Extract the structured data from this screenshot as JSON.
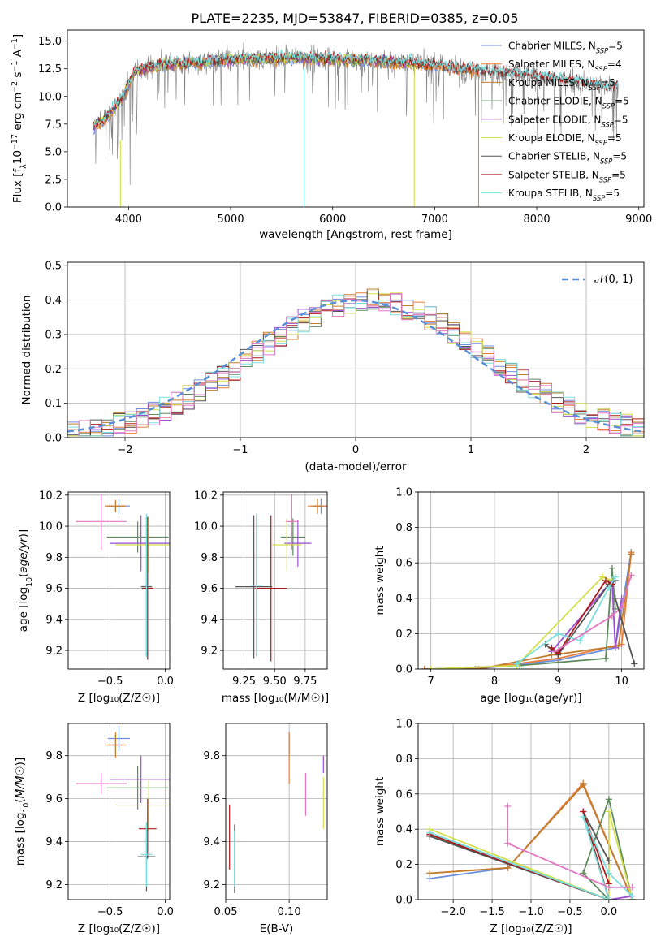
{
  "figure": {
    "title": "PLATE=2235, MJD=53847, FIBERID=0385, z=0.05"
  },
  "colors": {
    "Chabrier MILES": "#6d8fe0",
    "Salpeter MILES": "#e87e38",
    "Kroupa MILES": "#c27d2e",
    "Chabrier ELODIE": "#5e8a5e",
    "Salpeter ELODIE": "#9a4fd0",
    "Kroupa ELODIE": "#d4e04a",
    "Chabrier STELIB": "#555555",
    "Salpeter STELIB": "#b01818",
    "Kroupa STELIB": "#7adede",
    "pink": "#e377c2",
    "normal": "#5a8ed6",
    "grid": "#b0b0b0"
  },
  "chart_data": [
    {
      "type": "line",
      "panel": "spectrum",
      "xlabel": "wavelength [Angstrom, rest frame]",
      "ylabel": "Flux [f_λ 10^-17 erg cm^-2 s^-1 A^-1]",
      "xlim": [
        3400,
        9050
      ],
      "ylim": [
        0,
        16
      ],
      "xticks": [
        4000,
        5000,
        6000,
        7000,
        8000,
        9000
      ],
      "yticks": [
        0.0,
        2.5,
        5.0,
        7.5,
        10.0,
        12.5,
        15.0
      ],
      "ytick_labels": [
        "0.0",
        "2.5",
        "5.0",
        "7.5",
        "10.0",
        "12.5",
        "15.0"
      ],
      "legend_position": "upper right",
      "series": [
        {
          "name": "Chabrier MILES",
          "nssp": "5",
          "end": 7430
        },
        {
          "name": "Salpeter MILES",
          "nssp": "4",
          "end": 7430
        },
        {
          "name": "Kroupa MILES",
          "nssp": "5",
          "end": 7430
        },
        {
          "name": "Chabrier ELODIE",
          "nssp": "5",
          "end": 6800
        },
        {
          "name": "Salpeter ELODIE",
          "nssp": "5",
          "end": 6800
        },
        {
          "name": "Kroupa ELODIE",
          "nssp": "5",
          "end": 6800
        },
        {
          "name": "Chabrier STELIB",
          "nssp": "5",
          "end": 8800
        },
        {
          "name": "Salpeter STELIB",
          "nssp": "5",
          "end": 8800
        },
        {
          "name": "Kroupa STELIB",
          "nssp": "5",
          "end": 8800
        }
      ],
      "continuum": {
        "x": [
          3650,
          3750,
          3850,
          3950,
          4050,
          4200,
          4400,
          4700,
          5000,
          5300,
          5600,
          5900,
          6200,
          6500,
          6800,
          7100,
          7400,
          7700,
          8000,
          8300,
          8600,
          8800
        ],
        "y": [
          7.2,
          7.8,
          8.8,
          10.0,
          12.2,
          12.6,
          12.9,
          13.1,
          13.3,
          13.4,
          13.5,
          13.4,
          13.3,
          13.2,
          13.0,
          12.7,
          12.4,
          12.1,
          11.8,
          11.4,
          11.0,
          10.8
        ]
      }
    },
    {
      "type": "histogram",
      "panel": "residuals",
      "xlabel": "(data-model)/error",
      "ylabel": "Normed distribution",
      "xlim": [
        -2.5,
        2.5
      ],
      "ylim": [
        0,
        0.51
      ],
      "xticks": [
        -2,
        -1,
        0,
        1,
        2
      ],
      "xtick_labels": [
        "−2",
        "−1",
        "0",
        "1",
        "2"
      ],
      "yticks": [
        0.0,
        0.1,
        0.2,
        0.3,
        0.4,
        0.5
      ],
      "ytick_labels": [
        "0.0",
        "0.1",
        "0.2",
        "0.3",
        "0.4",
        "0.5"
      ],
      "bin_width": 0.1,
      "legend": "𝒩(0, 1)",
      "legend_position": "upper right",
      "normal": {
        "mean": 0,
        "sigma": 1
      }
    },
    {
      "type": "scatter",
      "panel": "age-vs-Z",
      "xlabel": "Z [log₁₀(Z/Z☉)]",
      "ylabel": "age  [log₁₀(age/yr)]",
      "xlim": [
        -0.88,
        0.04
      ],
      "ylim": [
        9.08,
        10.22
      ],
      "xticks": [
        -0.5,
        0.0
      ],
      "xtick_labels": [
        "−0.5",
        "0.0"
      ],
      "yticks": [
        9.2,
        9.4,
        9.6,
        9.8,
        10.0,
        10.2
      ],
      "ytick_labels": [
        "9.2",
        "9.4",
        "9.6",
        "9.8",
        "10.0",
        "10.2"
      ],
      "points": [
        {
          "name": "Chabrier MILES",
          "x": -0.42,
          "y": 10.13,
          "xerr": 0.1,
          "yerr": 0.05
        },
        {
          "name": "Salpeter MILES",
          "x": -0.45,
          "y": 10.13,
          "xerr": 0.1,
          "yerr": 0.04
        },
        {
          "name": "Kroupa MILES",
          "x": -0.45,
          "y": 10.13,
          "xerr": 0.08,
          "yerr": 0.03
        },
        {
          "name": "Chabrier ELODIE",
          "x": -0.25,
          "y": 9.93,
          "xerr": 0.28,
          "yerr": 0.1
        },
        {
          "name": "Salpeter ELODIE",
          "x": -0.22,
          "y": 9.89,
          "xerr": 0.28,
          "yerr": 0.18
        },
        {
          "name": "Kroupa ELODIE",
          "x": -0.15,
          "y": 9.88,
          "xerr": 0.3,
          "yerr": 0.18
        },
        {
          "name": "Chabrier STELIB",
          "x": -0.17,
          "y": 9.61,
          "xerr": 0.05,
          "yerr": 0.45
        },
        {
          "name": "Salpeter STELIB",
          "x": -0.16,
          "y": 9.6,
          "xerr": 0.05,
          "yerr": 0.46
        },
        {
          "name": "Kroupa STELIB",
          "x": -0.17,
          "y": 9.62,
          "xerr": 0.04,
          "yerr": 0.46
        },
        {
          "name": "pink",
          "x": -0.58,
          "y": 10.03,
          "xerr": 0.23,
          "yerr": 0.18
        }
      ]
    },
    {
      "type": "scatter",
      "panel": "age-vs-mass",
      "xlabel": "mass [log₁₀(M/M☉)]",
      "ylabel": "",
      "xlim": [
        9.08,
        9.93
      ],
      "ylim": [
        9.08,
        10.22
      ],
      "xticks": [
        9.25,
        9.5,
        9.75
      ],
      "xtick_labels": [
        "9.25",
        "9.50",
        "9.75"
      ],
      "yticks": [
        9.2,
        9.4,
        9.6,
        9.8,
        10.0,
        10.2
      ],
      "ytick_labels": [
        "9.2",
        "9.4",
        "9.6",
        "9.8",
        "10.0",
        "10.2"
      ],
      "points": [
        {
          "name": "Chabrier MILES",
          "x": 9.88,
          "y": 10.13,
          "xerr": 0.06,
          "yerr": 0.05
        },
        {
          "name": "Salpeter MILES",
          "x": 9.85,
          "y": 10.13,
          "xerr": 0.08,
          "yerr": 0.04
        },
        {
          "name": "Kroupa MILES",
          "x": 9.85,
          "y": 10.13,
          "xerr": 0.05,
          "yerr": 0.05
        },
        {
          "name": "Chabrier ELODIE",
          "x": 9.65,
          "y": 9.93,
          "xerr": 0.1,
          "yerr": 0.12
        },
        {
          "name": "Salpeter ELODIE",
          "x": 9.69,
          "y": 9.89,
          "xerr": 0.11,
          "yerr": 0.15
        },
        {
          "name": "Kroupa ELODIE",
          "x": 9.6,
          "y": 9.88,
          "xerr": 0.12,
          "yerr": 0.17
        },
        {
          "name": "Chabrier STELIB",
          "x": 9.33,
          "y": 9.61,
          "xerr": 0.15,
          "yerr": 0.46
        },
        {
          "name": "Salpeter STELIB",
          "x": 9.47,
          "y": 9.6,
          "xerr": 0.13,
          "yerr": 0.47
        },
        {
          "name": "Kroupa STELIB",
          "x": 9.35,
          "y": 9.62,
          "xerr": 0.05,
          "yerr": 0.46
        },
        {
          "name": "pink",
          "x": 9.64,
          "y": 10.03,
          "xerr": 0.05,
          "yerr": 0.18
        }
      ]
    },
    {
      "type": "line",
      "panel": "massweight-vs-age",
      "xlabel": "age  [log₁₀(age/yr)]",
      "ylabel": "mass weight",
      "xlim": [
        6.8,
        10.35
      ],
      "ylim": [
        0,
        1.0
      ],
      "xticks": [
        7,
        8,
        9,
        10
      ],
      "xtick_labels": [
        "7",
        "8",
        "9",
        "10"
      ],
      "yticks": [
        0.0,
        0.2,
        0.4,
        0.6,
        0.8,
        1.0
      ],
      "ytick_labels": [
        "0.0",
        "0.2",
        "0.4",
        "0.6",
        "0.8",
        "1.0"
      ],
      "series": [
        {
          "name": "Chabrier MILES",
          "x": [
            6.9,
            7.7,
            9.0,
            9.9,
            10.15
          ],
          "y": [
            0.0,
            0.0,
            0.05,
            0.12,
            0.66
          ]
        },
        {
          "name": "Salpeter MILES",
          "x": [
            6.9,
            7.7,
            9.0,
            10.0,
            10.15
          ],
          "y": [
            0.0,
            0.0,
            0.06,
            0.14,
            0.66
          ]
        },
        {
          "name": "Kroupa MILES",
          "x": [
            6.9,
            7.75,
            8.9,
            9.95,
            10.15
          ],
          "y": [
            0.0,
            0.0,
            0.08,
            0.13,
            0.65
          ]
        },
        {
          "name": "Chabrier ELODIE",
          "x": [
            7.0,
            8.4,
            9.75,
            9.85,
            9.9
          ],
          "y": [
            0.0,
            0.02,
            0.06,
            0.57,
            0.34
          ]
        },
        {
          "name": "Salpeter ELODIE",
          "x": [
            8.9,
            9.85,
            9.9,
            10.0
          ],
          "y": [
            0.1,
            0.5,
            0.12,
            0.4
          ]
        },
        {
          "name": "Kroupa ELODIE",
          "x": [
            7.0,
            8.35,
            9.7,
            9.85
          ],
          "y": [
            0.0,
            0.02,
            0.52,
            0.5
          ]
        },
        {
          "name": "Chabrier STELIB",
          "x": [
            8.8,
            9.0,
            9.8,
            9.9
          ],
          "y": [
            0.14,
            0.08,
            0.48,
            0.5
          ]
        },
        {
          "name": "Salpeter STELIB",
          "x": [
            8.9,
            9.0,
            9.75,
            9.85
          ],
          "y": [
            0.12,
            0.09,
            0.5,
            0.48
          ]
        },
        {
          "name": "Kroupa STELIB",
          "x": [
            8.35,
            9.0,
            9.35,
            9.8,
            9.9
          ],
          "y": [
            0.03,
            0.2,
            0.16,
            0.46,
            0.52
          ]
        },
        {
          "name": "pink",
          "x": [
            8.95,
            9.85,
            10.0,
            10.15
          ],
          "y": [
            0.1,
            0.3,
            0.35,
            0.53
          ]
        },
        {
          "name": "Chabrier STELIB",
          "x": [
            9.9,
            10.2
          ],
          "y": [
            0.4,
            0.03
          ]
        }
      ]
    },
    {
      "type": "scatter",
      "panel": "mass-vs-Z",
      "xlabel": "Z [log₁₀(Z/Z☉)]",
      "ylabel": "mass [log₁₀(M/M☉)]",
      "xlim": [
        -0.88,
        0.04
      ],
      "ylim": [
        9.13,
        9.95
      ],
      "xticks": [
        -0.5,
        0.0
      ],
      "xtick_labels": [
        "−0.5",
        "0.0"
      ],
      "yticks": [
        9.2,
        9.4,
        9.6,
        9.8
      ],
      "ytick_labels": [
        "9.2",
        "9.4",
        "9.6",
        "9.8"
      ],
      "points": [
        {
          "name": "Chabrier MILES",
          "x": -0.42,
          "y": 9.88,
          "xerr": 0.1,
          "yerr": 0.06
        },
        {
          "name": "Salpeter MILES",
          "x": -0.45,
          "y": 9.85,
          "xerr": 0.1,
          "yerr": 0.06
        },
        {
          "name": "Kroupa MILES",
          "x": -0.45,
          "y": 9.85,
          "xerr": 0.08,
          "yerr": 0.05
        },
        {
          "name": "Chabrier ELODIE",
          "x": -0.25,
          "y": 9.65,
          "xerr": 0.28,
          "yerr": 0.1
        },
        {
          "name": "Salpeter ELODIE",
          "x": -0.22,
          "y": 9.69,
          "xerr": 0.28,
          "yerr": 0.11
        },
        {
          "name": "Kroupa ELODIE",
          "x": -0.15,
          "y": 9.57,
          "xerr": 0.3,
          "yerr": 0.12
        },
        {
          "name": "Chabrier STELIB",
          "x": -0.17,
          "y": 9.33,
          "xerr": 0.08,
          "yerr": 0.16
        },
        {
          "name": "Salpeter STELIB",
          "x": -0.16,
          "y": 9.46,
          "xerr": 0.08,
          "yerr": 0.14
        },
        {
          "name": "Kroupa STELIB",
          "x": -0.17,
          "y": 9.34,
          "xerr": 0.05,
          "yerr": 0.15
        },
        {
          "name": "pink",
          "x": -0.58,
          "y": 9.67,
          "xerr": 0.23,
          "yerr": 0.05
        }
      ]
    },
    {
      "type": "scatter",
      "panel": "mass-vs-EBV",
      "xlabel": "E(B-V)",
      "ylabel": "",
      "xlim": [
        0.05,
        0.13
      ],
      "ylim": [
        9.13,
        9.95
      ],
      "xticks": [
        0.05,
        0.1
      ],
      "xtick_labels": [
        "0.05",
        "0.10"
      ],
      "yticks": [
        9.2,
        9.4,
        9.6,
        9.8
      ],
      "ytick_labels": [
        "9.2",
        "9.4",
        "9.6",
        "9.8"
      ],
      "points": [
        {
          "name": "Chabrier MILES",
          "x": 0.1,
          "y": 9.86,
          "yerr": 0.05
        },
        {
          "name": "Salpeter MILES",
          "x": 0.1,
          "y": 9.79,
          "yerr": 0.12
        },
        {
          "name": "Salpeter ELODIE",
          "x": 0.127,
          "y": 9.76,
          "yerr": 0.04
        },
        {
          "name": "Kroupa ELODIE",
          "x": 0.127,
          "y": 9.58,
          "yerr": 0.12
        },
        {
          "name": "pink",
          "x": 0.113,
          "y": 9.62,
          "yerr": 0.1
        },
        {
          "name": "Salpeter STELIB",
          "x": 0.053,
          "y": 9.42,
          "yerr": 0.15
        },
        {
          "name": "Chabrier STELIB",
          "x": 0.057,
          "y": 9.32,
          "yerr": 0.16
        },
        {
          "name": "Kroupa STELIB",
          "x": 0.057,
          "y": 9.32,
          "yerr": 0.13
        }
      ]
    },
    {
      "type": "line",
      "panel": "massweight-vs-Z",
      "xlabel": "Z [log₁₀(Z/Z☉)]",
      "ylabel": "mass weight",
      "xlim": [
        -2.45,
        0.45
      ],
      "ylim": [
        0,
        1.0
      ],
      "xticks": [
        -2.0,
        -1.5,
        -1.0,
        -0.5,
        0.0
      ],
      "xtick_labels": [
        "−2.0",
        "−1.5",
        "−1.0",
        "−0.5",
        "0.0"
      ],
      "yticks": [
        0.0,
        0.2,
        0.4,
        0.6,
        0.8,
        1.0
      ],
      "ytick_labels": [
        "0.0",
        "0.2",
        "0.4",
        "0.6",
        "0.8",
        "1.0"
      ],
      "series": [
        {
          "name": "Chabrier MILES",
          "x": [
            -2.3,
            -1.3,
            -0.33,
            0.3
          ],
          "y": [
            0.12,
            0.18,
            0.66,
            0.0
          ]
        },
        {
          "name": "Salpeter MILES",
          "x": [
            -2.3,
            -1.3,
            -0.33,
            0.3
          ],
          "y": [
            0.15,
            0.18,
            0.66,
            0.0
          ]
        },
        {
          "name": "Kroupa MILES",
          "x": [
            -2.3,
            -1.3,
            -0.33,
            0.3
          ],
          "y": [
            0.15,
            0.18,
            0.65,
            0.0
          ]
        },
        {
          "name": "Chabrier ELODIE",
          "x": [
            -2.3,
            0.0,
            -0.33,
            0.0,
            0.3
          ],
          "y": [
            0.37,
            0.0,
            0.15,
            0.57,
            0.0
          ]
        },
        {
          "name": "Salpeter ELODIE",
          "x": [
            -2.3,
            0.0,
            0.3
          ],
          "y": [
            0.38,
            0.0,
            0.02
          ]
        },
        {
          "name": "Kroupa ELODIE",
          "x": [
            -2.3,
            0.0,
            0.0,
            0.3
          ],
          "y": [
            0.4,
            0.0,
            0.5,
            0.0
          ]
        },
        {
          "name": "Chabrier STELIB",
          "x": [
            -2.3,
            0.0,
            -0.33,
            0.0
          ],
          "y": [
            0.36,
            0.0,
            0.5,
            0.22
          ]
        },
        {
          "name": "Salpeter STELIB",
          "x": [
            -2.3,
            0.0,
            -0.33,
            0.0
          ],
          "y": [
            0.37,
            0.0,
            0.5,
            0.09
          ]
        },
        {
          "name": "Kroupa STELIB",
          "x": [
            -2.3,
            0.0,
            -0.33,
            0.0,
            0.3
          ],
          "y": [
            0.38,
            0.0,
            0.47,
            0.15,
            0.02
          ]
        },
        {
          "name": "pink",
          "x": [
            -1.3,
            -1.3,
            0.0,
            0.3
          ],
          "y": [
            0.53,
            0.32,
            0.07,
            0.07
          ]
        }
      ]
    }
  ]
}
